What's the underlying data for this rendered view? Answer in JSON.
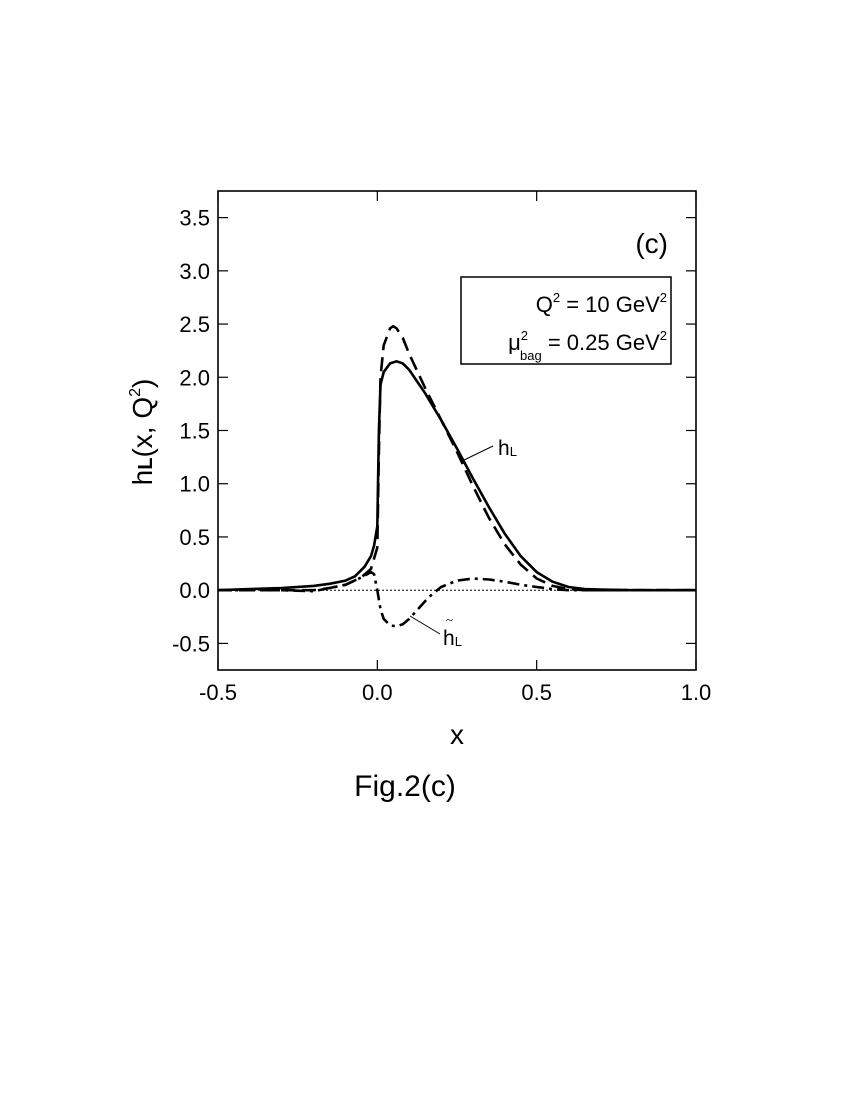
{
  "chart_data": {
    "type": "line",
    "panel_label": "(c)",
    "xlabel": "x",
    "ylabel": {
      "base": "h",
      "sub": "L",
      "rest": "(x, Q",
      "sup": "2",
      "close": ")"
    },
    "xlim": [
      -0.5,
      1.0
    ],
    "ylim": [
      -0.75,
      3.75
    ],
    "x_ticks": [
      -0.5,
      0.0,
      0.5,
      1.0
    ],
    "x_tick_labels": [
      "-0.5",
      "0.0",
      "0.5",
      "1.0"
    ],
    "y_ticks": [
      -0.5,
      0.0,
      0.5,
      1.0,
      1.5,
      2.0,
      2.5,
      3.0,
      3.5
    ],
    "y_tick_labels": [
      "-0.5",
      "0.0",
      "0.5",
      "1.0",
      "1.5",
      "2.0",
      "2.5",
      "3.0",
      "3.5"
    ],
    "info_box": {
      "line1": {
        "q": "Q",
        "q_sup": "2",
        "eq": " =  10   GeV",
        "unit_sup": "2"
      },
      "line2": {
        "mu": "μ",
        "mu_sup": "2",
        "mu_sub": "bag",
        "eq": " = 0.25 GeV",
        "unit_sup": "2"
      }
    },
    "annotations": {
      "hL": {
        "base": "h",
        "sub": "L"
      },
      "hL_tilde": {
        "tilde": "~",
        "base": "h",
        "sub": "L"
      }
    },
    "series": [
      {
        "style": "solid",
        "x": [
          -0.5,
          -0.4,
          -0.3,
          -0.2,
          -0.15,
          -0.1,
          -0.07,
          -0.04,
          -0.02,
          -0.01,
          0.0,
          0.005,
          0.01,
          0.02,
          0.04,
          0.06,
          0.08,
          0.1,
          0.15,
          0.2,
          0.25,
          0.3,
          0.35,
          0.4,
          0.45,
          0.5,
          0.55,
          0.6,
          0.65,
          0.7,
          0.8,
          1.0
        ],
        "y": [
          0.0,
          0.01,
          0.02,
          0.04,
          0.06,
          0.09,
          0.13,
          0.22,
          0.32,
          0.42,
          0.6,
          1.5,
          1.93,
          2.05,
          2.13,
          2.15,
          2.13,
          2.07,
          1.85,
          1.6,
          1.33,
          1.05,
          0.78,
          0.53,
          0.32,
          0.17,
          0.08,
          0.03,
          0.01,
          0.005,
          0.0,
          0.0
        ]
      },
      {
        "style": "dashed",
        "x": [
          -0.5,
          -0.4,
          -0.3,
          -0.2,
          -0.15,
          -0.1,
          -0.05,
          -0.02,
          0.0,
          0.005,
          0.01,
          0.02,
          0.04,
          0.05,
          0.06,
          0.08,
          0.1,
          0.15,
          0.2,
          0.25,
          0.3,
          0.35,
          0.4,
          0.45,
          0.5,
          0.55,
          0.6,
          0.65,
          0.7,
          1.0
        ],
        "y": [
          0.0,
          0.0,
          0.0,
          0.0,
          0.02,
          0.05,
          0.12,
          0.2,
          0.4,
          1.3,
          2.0,
          2.3,
          2.46,
          2.48,
          2.46,
          2.37,
          2.22,
          1.9,
          1.6,
          1.3,
          0.98,
          0.68,
          0.43,
          0.24,
          0.11,
          0.04,
          0.01,
          0.0,
          0.0,
          0.0
        ]
      },
      {
        "style": "dashdot",
        "x": [
          -0.5,
          -0.3,
          -0.2,
          -0.1,
          -0.05,
          -0.02,
          -0.01,
          0.0,
          0.01,
          0.02,
          0.04,
          0.06,
          0.08,
          0.1,
          0.13,
          0.16,
          0.2,
          0.25,
          0.3,
          0.35,
          0.4,
          0.45,
          0.5,
          0.55,
          0.6,
          0.7,
          1.0
        ],
        "y": [
          0.0,
          0.0,
          -0.01,
          0.05,
          0.12,
          0.17,
          0.15,
          0.0,
          -0.18,
          -0.27,
          -0.33,
          -0.34,
          -0.32,
          -0.27,
          -0.17,
          -0.07,
          0.03,
          0.09,
          0.11,
          0.1,
          0.08,
          0.05,
          0.03,
          0.01,
          0.0,
          0.0,
          0.0
        ]
      },
      {
        "style": "dotted",
        "x": [
          -0.5,
          1.0
        ],
        "y": [
          0.0,
          0.0
        ]
      }
    ]
  },
  "caption": "Fig.2(c)"
}
